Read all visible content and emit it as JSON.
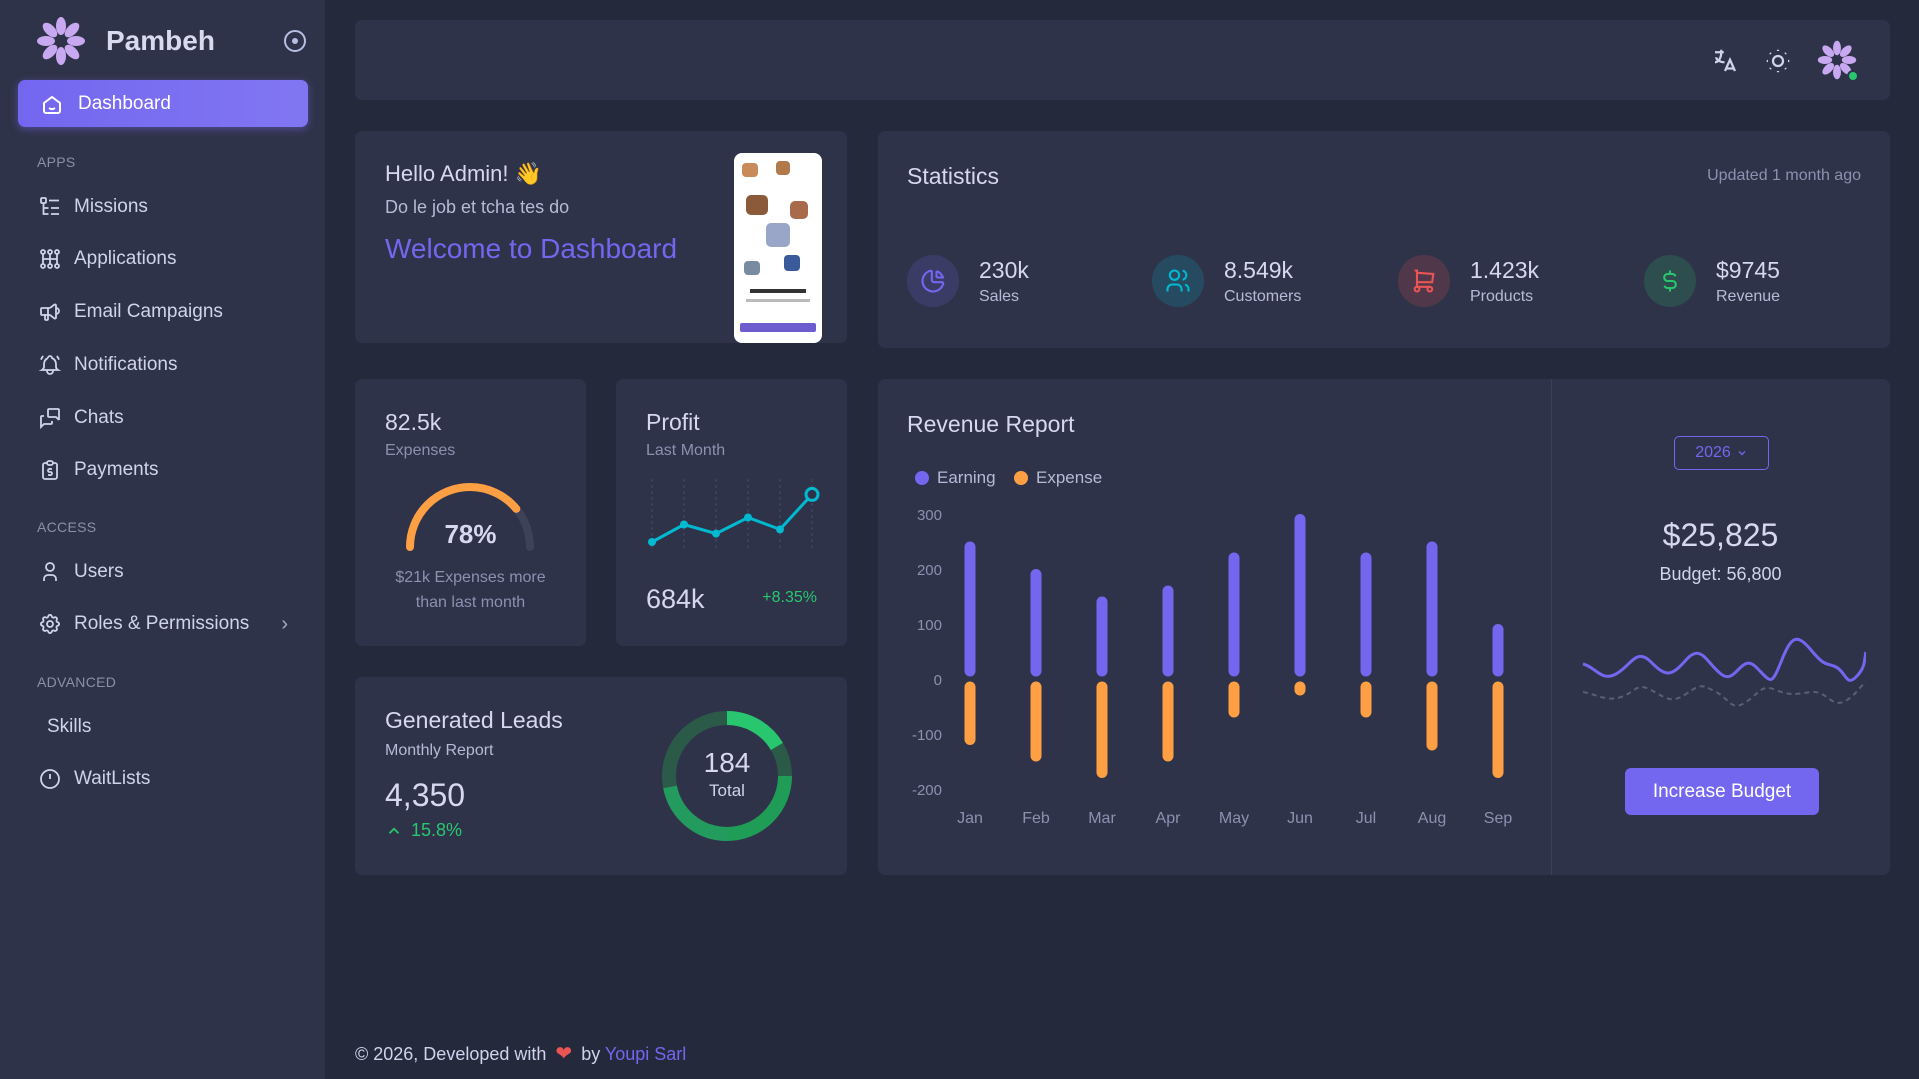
{
  "brand": {
    "name": "Pambeh"
  },
  "sidebar": {
    "active": {
      "label": "Dashboard"
    },
    "sections": {
      "apps": "APPS",
      "access": "ACCESS",
      "advanced": "ADVANCED"
    },
    "items": {
      "missions": "Missions",
      "applications": "Applications",
      "email": "Email Campaigns",
      "notifications": "Notifications",
      "chats": "Chats",
      "payments": "Payments",
      "users": "Users",
      "roles": "Roles & Permissions",
      "skills": "Skills",
      "waitlists": "WaitLists"
    }
  },
  "welcome": {
    "greeting": "Hello Admin! 👋",
    "subtitle": "Do le job et tcha tes do",
    "headline": "Welcome to Dashboard"
  },
  "statistics": {
    "title": "Statistics",
    "updated": "Updated 1 month ago",
    "items": [
      {
        "value": "230k",
        "label": "Sales",
        "icon": "pie-chart-icon",
        "color": "#7367f0"
      },
      {
        "value": "8.549k",
        "label": "Customers",
        "icon": "users-icon",
        "color": "#00bad1"
      },
      {
        "value": "1.423k",
        "label": "Products",
        "icon": "cart-icon",
        "color": "#ea5455"
      },
      {
        "value": "$9745",
        "label": "Revenue",
        "icon": "dollar-icon",
        "color": "#28c76f"
      }
    ]
  },
  "expenses": {
    "value": "82.5k",
    "label": "Expenses",
    "percent_text": "78%",
    "percent": 78,
    "note_line1": "$21k Expenses more",
    "note_line2": "than last month"
  },
  "profit": {
    "title": "Profit",
    "subtitle": "Last Month",
    "value": "684k",
    "change": "+8.35%",
    "points": [
      10,
      35,
      22,
      45,
      28,
      78
    ]
  },
  "leads": {
    "title": "Generated Leads",
    "subtitle": "Monthly Report",
    "value": "4,350",
    "change": "15.8%",
    "total_value": "184",
    "total_label": "Total"
  },
  "revenue": {
    "title": "Revenue Report",
    "year": "2026",
    "amount": "$25,825",
    "budget": "Budget: 56,800",
    "button": "Increase Budget"
  },
  "chart_data": {
    "type": "bar",
    "title": "Revenue Report",
    "categories": [
      "Jan",
      "Feb",
      "Mar",
      "Apr",
      "May",
      "Jun",
      "Jul",
      "Aug",
      "Sep"
    ],
    "series": [
      {
        "name": "Earning",
        "color": "#7367f0",
        "values": [
          240,
          190,
          140,
          160,
          220,
          290,
          220,
          240,
          90
        ]
      },
      {
        "name": "Expense",
        "color": "#ff9f43",
        "values": [
          -110,
          -140,
          -170,
          -140,
          -60,
          -20,
          -60,
          -120,
          -170
        ]
      }
    ],
    "ylim": [
      -200,
      300
    ],
    "yticks": [
      300,
      200,
      100,
      0,
      -100,
      -200
    ],
    "legend": "top-left"
  },
  "footer": {
    "prefix": "© 2026, Developed with",
    "by": "by",
    "company": "Youpi Sarl"
  }
}
